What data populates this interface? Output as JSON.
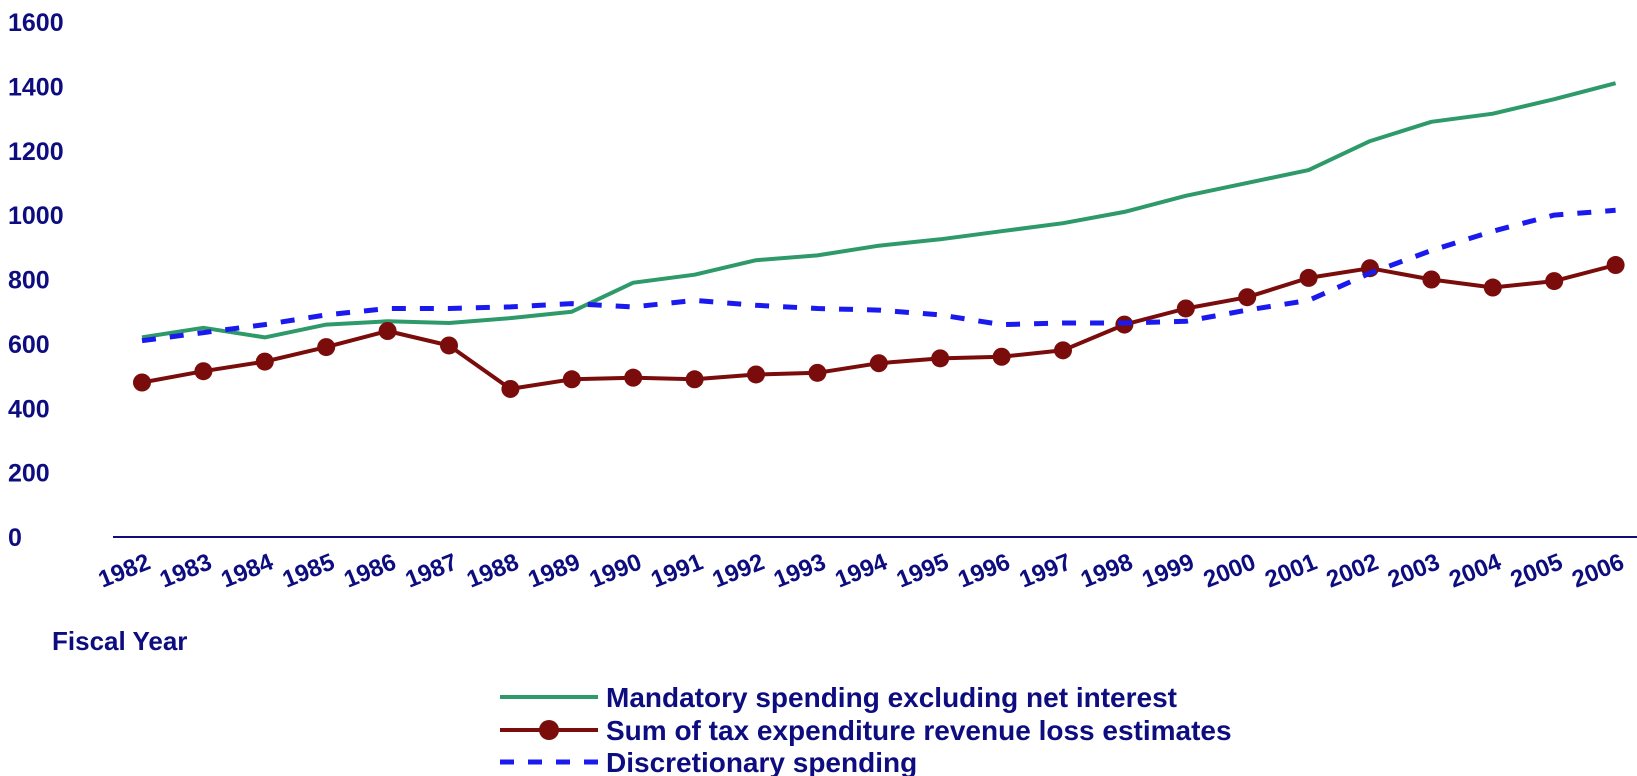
{
  "chart_data": {
    "type": "line",
    "xlabel": "Fiscal Year",
    "ylabel": "",
    "ylim": [
      0,
      1600
    ],
    "yticks": [
      "0",
      "200",
      "400",
      "600",
      "800",
      "1000",
      "1200",
      "1400",
      "1600"
    ],
    "categories": [
      "1982",
      "1983",
      "1984",
      "1985",
      "1986",
      "1987",
      "1988",
      "1989",
      "1990",
      "1991",
      "1992",
      "1993",
      "1994",
      "1995",
      "1996",
      "1997",
      "1998",
      "1999",
      "2000",
      "2001",
      "2002",
      "2003",
      "2004",
      "2005",
      "2006"
    ],
    "grid": false,
    "legend_position": "bottom",
    "series": [
      {
        "name": "Mandatory spending excluding net interest",
        "color": "#2e9a6a",
        "style": "solid",
        "values": [
          620,
          650,
          620,
          660,
          670,
          665,
          680,
          700,
          790,
          815,
          860,
          875,
          905,
          925,
          950,
          975,
          1010,
          1060,
          1100,
          1140,
          1230,
          1290,
          1315,
          1360,
          1410
        ]
      },
      {
        "name": "Sum of tax expenditure revenue loss estimates",
        "color": "#7a0c0c",
        "style": "solid-markers",
        "values": [
          480,
          515,
          545,
          590,
          640,
          595,
          460,
          490,
          495,
          490,
          505,
          510,
          540,
          555,
          560,
          580,
          660,
          710,
          745,
          805,
          835,
          800,
          775,
          795,
          845
        ]
      },
      {
        "name": "Discretionary spending",
        "color": "#1a1aee",
        "style": "dashed",
        "values": [
          610,
          635,
          660,
          690,
          710,
          710,
          715,
          725,
          715,
          735,
          720,
          710,
          705,
          690,
          660,
          665,
          665,
          670,
          705,
          735,
          820,
          890,
          950,
          1000,
          1015
        ]
      }
    ]
  }
}
